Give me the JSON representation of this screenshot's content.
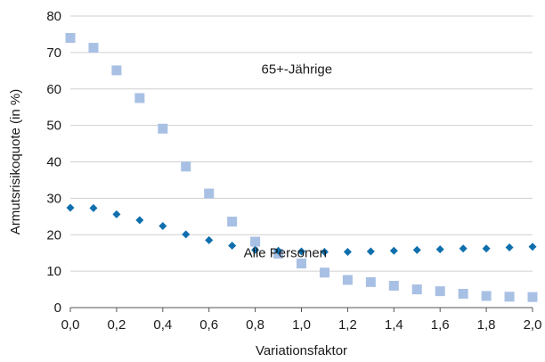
{
  "chart_data": {
    "type": "scatter",
    "xlabel": "Variationsfaktor",
    "ylabel": "Armutsrisikoquote (in %)",
    "xlim": [
      0.0,
      2.0
    ],
    "ylim": [
      0,
      80
    ],
    "xticks": [
      0.0,
      0.2,
      0.4,
      0.6,
      0.8,
      1.0,
      1.2,
      1.4,
      1.6,
      1.8,
      2.0
    ],
    "xtick_labels": [
      "0,0",
      "0,2",
      "0,4",
      "0,6",
      "0,8",
      "1,0",
      "1,2",
      "1,4",
      "1,6",
      "1,8",
      "2,0"
    ],
    "yticks": [
      0,
      10,
      20,
      30,
      40,
      50,
      60,
      70,
      80
    ],
    "ytick_labels": [
      "0",
      "10",
      "20",
      "30",
      "40",
      "50",
      "60",
      "70",
      "80"
    ],
    "grid": "horizontal",
    "x": [
      0.0,
      0.1,
      0.2,
      0.3,
      0.4,
      0.5,
      0.6,
      0.7,
      0.8,
      0.9,
      1.0,
      1.1,
      1.2,
      1.3,
      1.4,
      1.5,
      1.6,
      1.7,
      1.8,
      1.9,
      2.0
    ],
    "series": [
      {
        "name": "65+-Jährige",
        "marker": "square",
        "color": "#a8c0e4",
        "values": [
          74.0,
          71.3,
          65.1,
          57.5,
          49.1,
          38.7,
          31.3,
          23.6,
          18.1,
          14.8,
          12.1,
          9.6,
          7.6,
          7.0,
          6.0,
          5.0,
          4.5,
          3.8,
          3.2,
          3.0,
          2.9
        ]
      },
      {
        "name": "Alle Personen",
        "marker": "diamond",
        "color": "#0f6fad",
        "values": [
          27.4,
          27.3,
          25.6,
          24.0,
          22.4,
          20.1,
          18.5,
          17.0,
          15.8,
          15.6,
          15.4,
          15.3,
          15.3,
          15.4,
          15.6,
          15.8,
          16.0,
          16.2,
          16.2,
          16.5,
          16.7
        ]
      }
    ],
    "annotations": [
      {
        "text": "65+-Jährige",
        "x": 0.98,
        "y": 65.5,
        "series": 0
      },
      {
        "text": "Alle Personen",
        "x": 0.93,
        "y": 15.0,
        "series": 1
      }
    ]
  }
}
